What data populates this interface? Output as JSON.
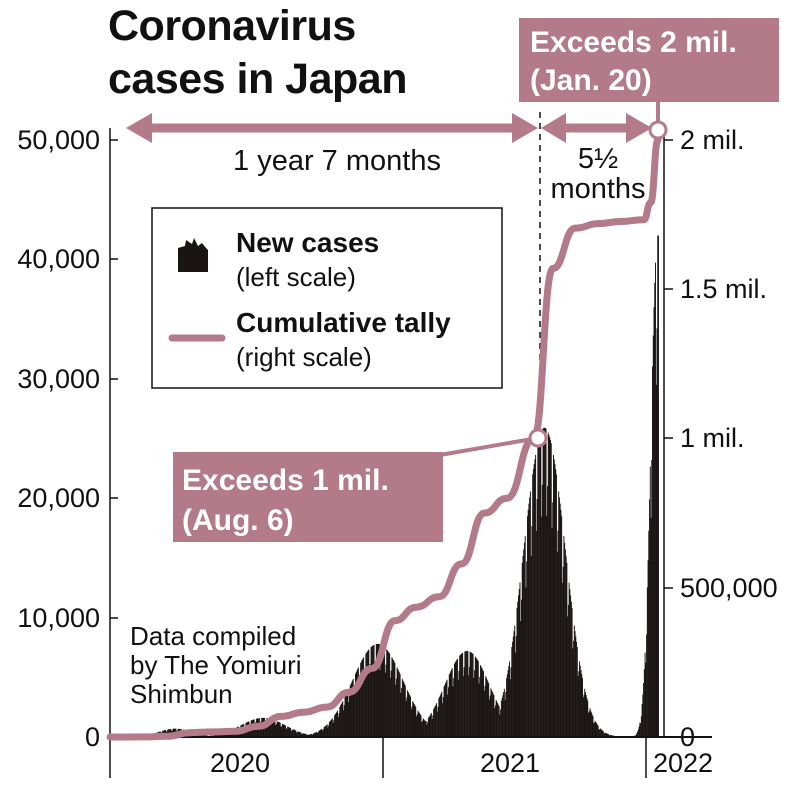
{
  "chart_data": {
    "type": "bar+line",
    "title_lines": [
      "Coronavirus",
      "cases in Japan"
    ],
    "left_axis": {
      "ylim": [
        0,
        50000
      ],
      "ticks": [
        0,
        10000,
        20000,
        30000,
        40000,
        50000
      ],
      "tick_labels": [
        "0",
        "10,000",
        "20,000",
        "30,000",
        "40,000",
        "50,000"
      ]
    },
    "right_axis": {
      "ylim": [
        0,
        2000000
      ],
      "ticks": [
        0,
        500000,
        1000000,
        1500000,
        2000000
      ],
      "tick_labels": [
        "0",
        "500,000",
        "1 mil.",
        "1.5 mil.",
        "2 mil."
      ]
    },
    "x_axis": {
      "start": "2020-01-15",
      "end": "2022-01-20",
      "year_labels": [
        "2020",
        "2021",
        "2022"
      ]
    },
    "legend": [
      {
        "label": "New cases",
        "sublabel": "(left scale)"
      },
      {
        "label": "Cumulative tally",
        "sublabel": "(right scale)"
      }
    ],
    "annotations": {
      "exceeds_1mil_line1": "Exceeds 1 mil.",
      "exceeds_1mil_line2": "(Aug. 6)",
      "exceeds_2mil_line1": "Exceeds 2 mil.",
      "exceeds_2mil_line2": "(Jan. 20)",
      "span1": "1 year 7 months",
      "span2_line1": "5½",
      "span2_line2": "months"
    },
    "credit_lines": [
      "Data compiled",
      "by The Yomiuri",
      "Shimbun"
    ],
    "new_cases_peaks": [
      {
        "date": "2020-04-11",
        "value": 700
      },
      {
        "date": "2020-08-07",
        "value": 1600
      },
      {
        "date": "2021-01-08",
        "value": 7800
      },
      {
        "date": "2021-05-08",
        "value": 7200
      },
      {
        "date": "2021-08-20",
        "value": 25900
      },
      {
        "date": "2022-01-19",
        "value": 42000
      }
    ],
    "cumulative_series": {
      "dates": [
        "2020-01-15",
        "2020-03-01",
        "2020-04-01",
        "2020-05-01",
        "2020-06-01",
        "2020-07-01",
        "2020-08-01",
        "2020-09-01",
        "2020-10-01",
        "2020-11-01",
        "2020-12-01",
        "2021-01-01",
        "2021-02-01",
        "2021-03-01",
        "2021-04-01",
        "2021-05-01",
        "2021-06-01",
        "2021-07-01",
        "2021-08-06",
        "2021-09-01",
        "2021-10-01",
        "2021-11-01",
        "2021-12-01",
        "2022-01-01",
        "2022-01-10",
        "2022-01-20"
      ],
      "values": [
        0,
        300,
        2400,
        14500,
        17000,
        19000,
        36000,
        69000,
        83000,
        100000,
        150000,
        230000,
        390000,
        435000,
        470000,
        580000,
        750000,
        800000,
        1000000,
        1570000,
        1705000,
        1720000,
        1727000,
        1733000,
        1790000,
        2000000
      ]
    }
  }
}
